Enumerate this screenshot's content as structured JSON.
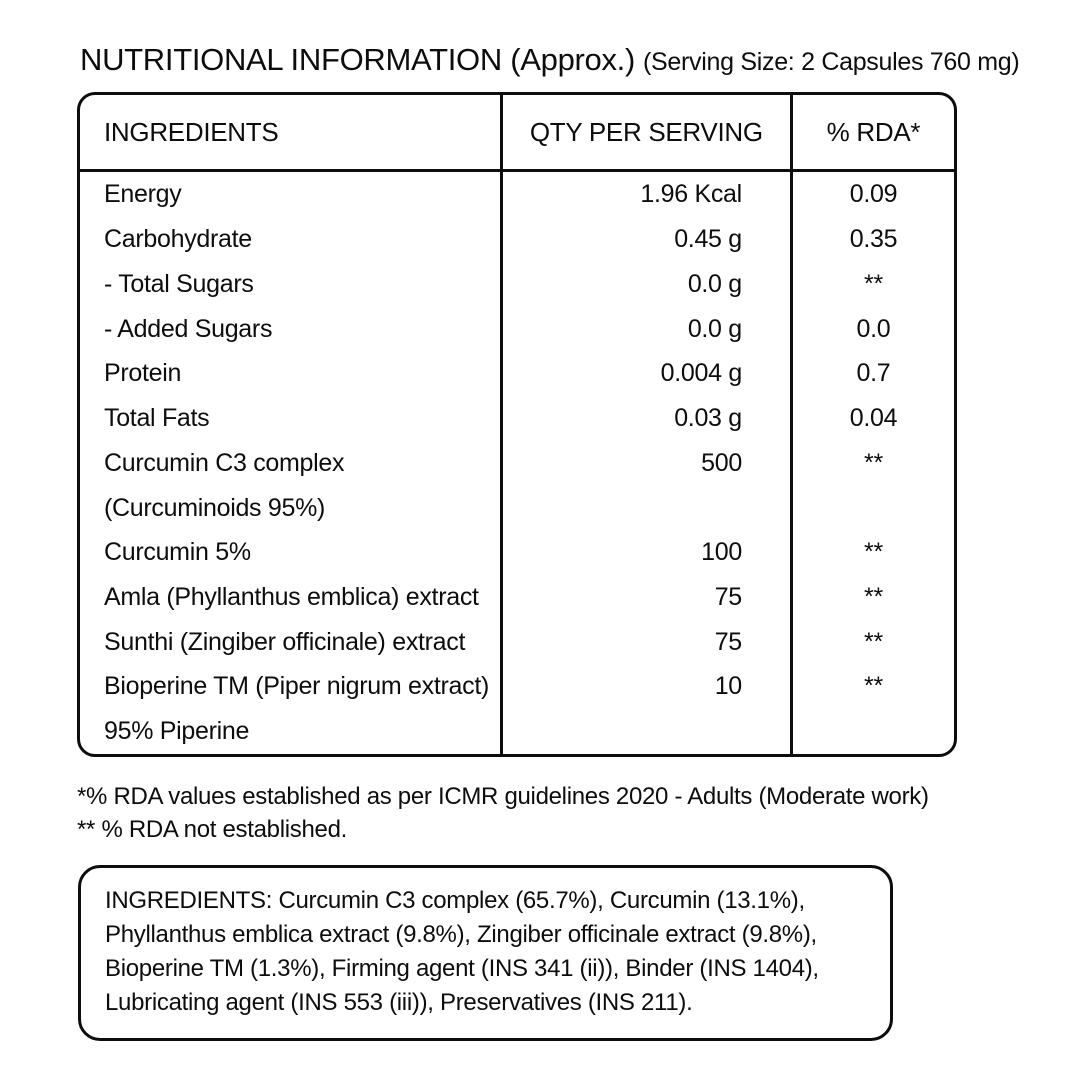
{
  "title": {
    "main": "NUTRITIONAL INFORMATION (Approx.)",
    "serving": "(Serving Size: 2 Capsules 760 mg)"
  },
  "table": {
    "headers": {
      "ingredients": "INGREDIENTS",
      "qty": "QTY PER SERVING",
      "rda": "% RDA*"
    },
    "rows": [
      {
        "label": "Energy",
        "qty": "1.96 Kcal",
        "rda": "0.09"
      },
      {
        "label": "Carbohydrate",
        "qty": "0.45 g",
        "rda": "0.35"
      },
      {
        "label": "- Total Sugars",
        "qty": "0.0 g",
        "rda": "**"
      },
      {
        "label": "- Added Sugars",
        "qty": "0.0 g",
        "rda": "0.0"
      },
      {
        "label": "Protein",
        "qty": "0.004 g",
        "rda": "0.7"
      },
      {
        "label": "Total Fats",
        "qty": "0.03 g",
        "rda": "0.04"
      },
      {
        "label": "Curcumin C3 complex",
        "qty": "500",
        "rda": "**"
      },
      {
        "label": "(Curcuminoids 95%)",
        "qty": "",
        "rda": ""
      },
      {
        "label": "Curcumin 5%",
        "qty": "100",
        "rda": "**"
      },
      {
        "label": "Amla (Phyllanthus emblica) extract",
        "qty": "75",
        "rda": "**"
      },
      {
        "label": "Sunthi (Zingiber officinale) extract",
        "qty": "75",
        "rda": "**"
      },
      {
        "label": "Bioperine TM (Piper nigrum extract)",
        "qty": "10",
        "rda": "**"
      },
      {
        "label": "95% Piperine",
        "qty": "",
        "rda": ""
      }
    ]
  },
  "footnotes": {
    "line1": "*% RDA values established as per ICMR guidelines 2020 - Adults (Moderate work)",
    "line2": "** % RDA not established."
  },
  "ingredients_box": {
    "text": "INGREDIENTS: Curcumin C3 complex (65.7%), Curcumin (13.1%), Phyllanthus emblica extract (9.8%), Zingiber officinale extract (9.8%), Bioperine TM (1.3%), Firming agent (INS 341 (ii)), Binder (INS 1404), Lubricating agent (INS 553 (iii)), Preservatives (INS 211)."
  },
  "colors": {
    "text": "#0d0d0d",
    "border": "#0d0d0d",
    "background": "#ffffff"
  }
}
